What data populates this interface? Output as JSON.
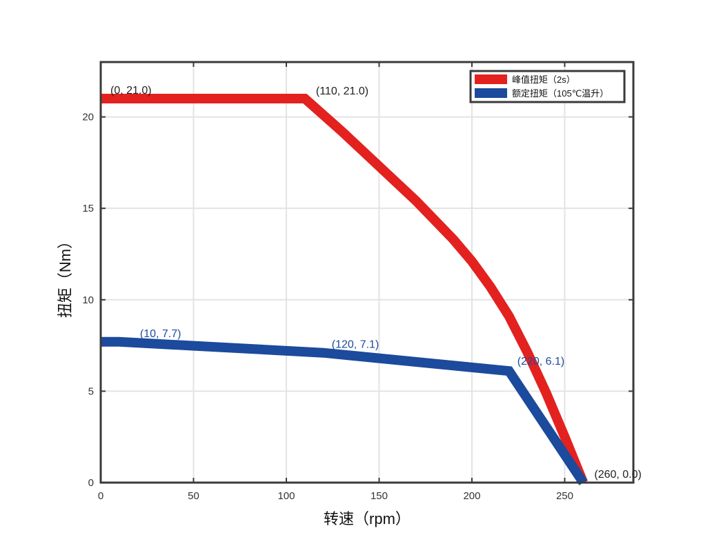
{
  "chart_data": {
    "type": "line",
    "xlabel": "转速（rpm）",
    "ylabel": "扭矩（Nm）",
    "xlim": [
      0,
      287
    ],
    "ylim": [
      0,
      23
    ],
    "xticks": [
      0,
      50,
      100,
      150,
      200,
      250
    ],
    "yticks": [
      0,
      5,
      10,
      15,
      20
    ],
    "xtick_labels": [
      "0",
      "50",
      "100",
      "150",
      "200",
      "250"
    ],
    "ytick_labels": [
      "0",
      "5",
      "10",
      "15",
      "20"
    ],
    "grid": true,
    "legend_position": "top-right",
    "series": [
      {
        "name": "峰值扭矩（2s）",
        "color": "#e3211f",
        "x": [
          0,
          110,
          130,
          150,
          170,
          190,
          200,
          210,
          220,
          230,
          240,
          250,
          260
        ],
        "y": [
          21.0,
          21.0,
          19.2,
          17.3,
          15.4,
          13.3,
          12.1,
          10.7,
          9.1,
          7.1,
          4.9,
          2.5,
          0.0
        ]
      },
      {
        "name": "额定扭矩（105℃温升）",
        "color": "#1c4a9c",
        "x": [
          0,
          10,
          120,
          220,
          260
        ],
        "y": [
          7.7,
          7.7,
          7.1,
          6.1,
          0.0
        ]
      }
    ],
    "annotations": [
      {
        "text": "(0, 21.0)",
        "x": 0,
        "y": 21.0,
        "color": "#222222"
      },
      {
        "text": "(110, 21.0)",
        "x": 110,
        "y": 21.0,
        "color": "#222222"
      },
      {
        "text": "(10, 7.7)",
        "x": 10,
        "y": 7.7,
        "color": "#1c4a9c"
      },
      {
        "text": "(120, 7.1)",
        "x": 120,
        "y": 7.1,
        "color": "#1c4a9c"
      },
      {
        "text": "(220, 6.1)",
        "x": 220,
        "y": 6.1,
        "color": "#1c4a9c"
      },
      {
        "text": "(260, 0.0)",
        "x": 260,
        "y": 0.0,
        "color": "#222222"
      }
    ]
  }
}
